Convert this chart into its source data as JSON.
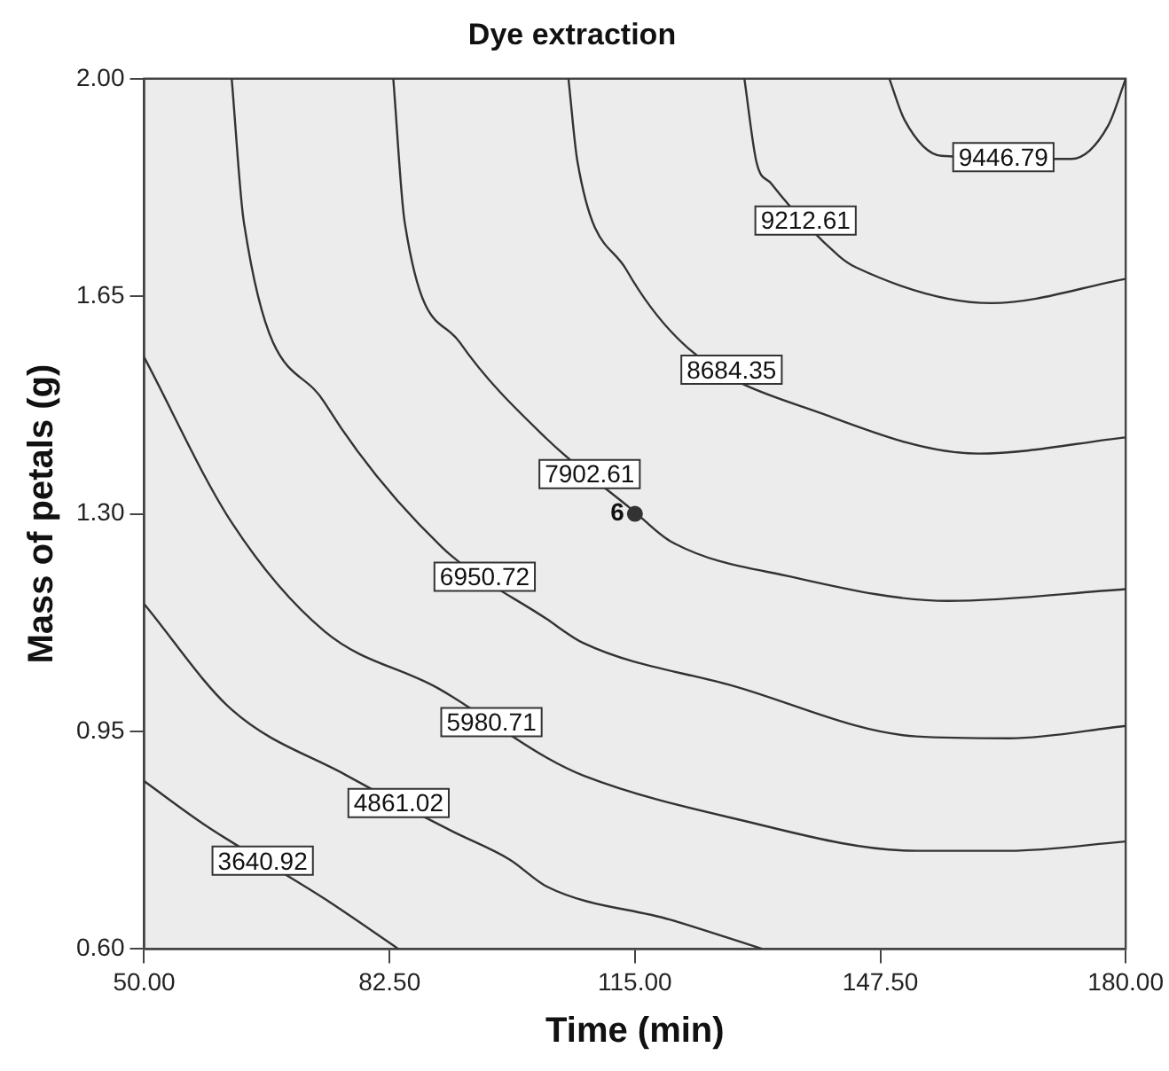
{
  "chart_data": {
    "type": "line",
    "title": "Dye extraction",
    "xlabel": "Time (min)",
    "ylabel": "Mass of petals (g)",
    "xlim": [
      50,
      180
    ],
    "ylim": [
      0.6,
      2.0
    ],
    "xticks": [
      {
        "value": 50,
        "label": "50.00"
      },
      {
        "value": 82.5,
        "label": "82.50"
      },
      {
        "value": 115,
        "label": "115.00"
      },
      {
        "value": 147.5,
        "label": "147.50"
      },
      {
        "value": 180,
        "label": "180.00"
      }
    ],
    "yticks": [
      {
        "value": 0.6,
        "label": "0.60"
      },
      {
        "value": 0.95,
        "label": "0.95"
      },
      {
        "value": 1.3,
        "label": "1.30"
      },
      {
        "value": 1.65,
        "label": "1.65"
      },
      {
        "value": 2.0,
        "label": "2.00"
      }
    ],
    "grid": false,
    "legend": false,
    "marker": "none",
    "line_style": "solid",
    "series": [
      {
        "color": "#333333",
        "x": [
          50,
          58,
          74,
          83.7
        ],
        "values": [
          0.87,
          0.8,
          0.68,
          0.6
        ]
      },
      {
        "color": "#333333",
        "x": [
          50,
          61.6,
          76.7,
          90.7,
          98.4,
          103.4,
          119.7,
          131.9
        ],
        "values": [
          1.155,
          0.985,
          0.88,
          0.79,
          0.744,
          0.7,
          0.647,
          0.6
        ]
      },
      {
        "color": "#333333",
        "x": [
          50,
          61.6,
          73.9,
          89,
          103.3,
          108.2,
          127.8,
          152.3,
          164.6,
          180
        ],
        "values": [
          1.552,
          1.286,
          1.111,
          1.019,
          0.908,
          0.879,
          0.811,
          0.758,
          0.758,
          0.773
        ]
      },
      {
        "color": "#333333",
        "x": [
          61.6,
          63.2,
          73.9,
          89.4,
          103.3,
          108.2,
          127.8,
          152.3,
          164.6,
          180
        ],
        "values": [
          2.0,
          1.77,
          1.479,
          1.247,
          1.131,
          1.092,
          1.024,
          0.942,
          0.939,
          0.959
        ]
      },
      {
        "color": "#333333",
        "x": [
          83,
          84.5,
          91.8,
          103.3,
          114.8,
          119.7,
          136,
          156.5,
          180
        ],
        "values": [
          2.0,
          1.77,
          1.576,
          1.421,
          1.305,
          1.256,
          1.198,
          1.16,
          1.179
        ]
      },
      {
        "color": "#333333",
        "x": [
          106.2,
          107.4,
          113.9,
          122.1,
          140.1,
          160.5,
          180
        ],
        "values": [
          2.0,
          1.866,
          1.692,
          1.566,
          1.46,
          1.397,
          1.423
        ]
      },
      {
        "color": "#333333",
        "x": [
          129.5,
          131.1,
          133,
          142,
          144.2,
          162.2,
          180
        ],
        "values": [
          2.0,
          1.866,
          1.832,
          1.715,
          1.697,
          1.639,
          1.678
        ]
      },
      {
        "color": "#333333",
        "x": [
          148.7,
          150.7,
          155.6,
          172.8,
          177.7,
          180
        ],
        "values": [
          2.0,
          1.934,
          1.876,
          1.871,
          1.925,
          2.0
        ]
      },
      {
        "type": "scatter",
        "marker": "circle",
        "color": "#333333",
        "x": [
          115
        ],
        "values": [
          1.3
        ]
      }
    ],
    "annotations": [
      {
        "text": "6",
        "x": 115,
        "y": 1.3
      },
      {
        "text": "3640.92",
        "x": 65.7,
        "y": 0.742
      },
      {
        "text": "4861.02",
        "x": 83.7,
        "y": 0.835
      },
      {
        "text": "5980.71",
        "x": 96,
        "y": 0.965
      },
      {
        "text": "6950.72",
        "x": 95.1,
        "y": 1.199
      },
      {
        "text": "7902.61",
        "x": 109,
        "y": 1.364
      },
      {
        "text": "8684.35",
        "x": 127.8,
        "y": 1.532
      },
      {
        "text": "9212.61",
        "x": 137.6,
        "y": 1.772
      },
      {
        "text": "9446.79",
        "x": 163.8,
        "y": 1.874
      }
    ]
  }
}
